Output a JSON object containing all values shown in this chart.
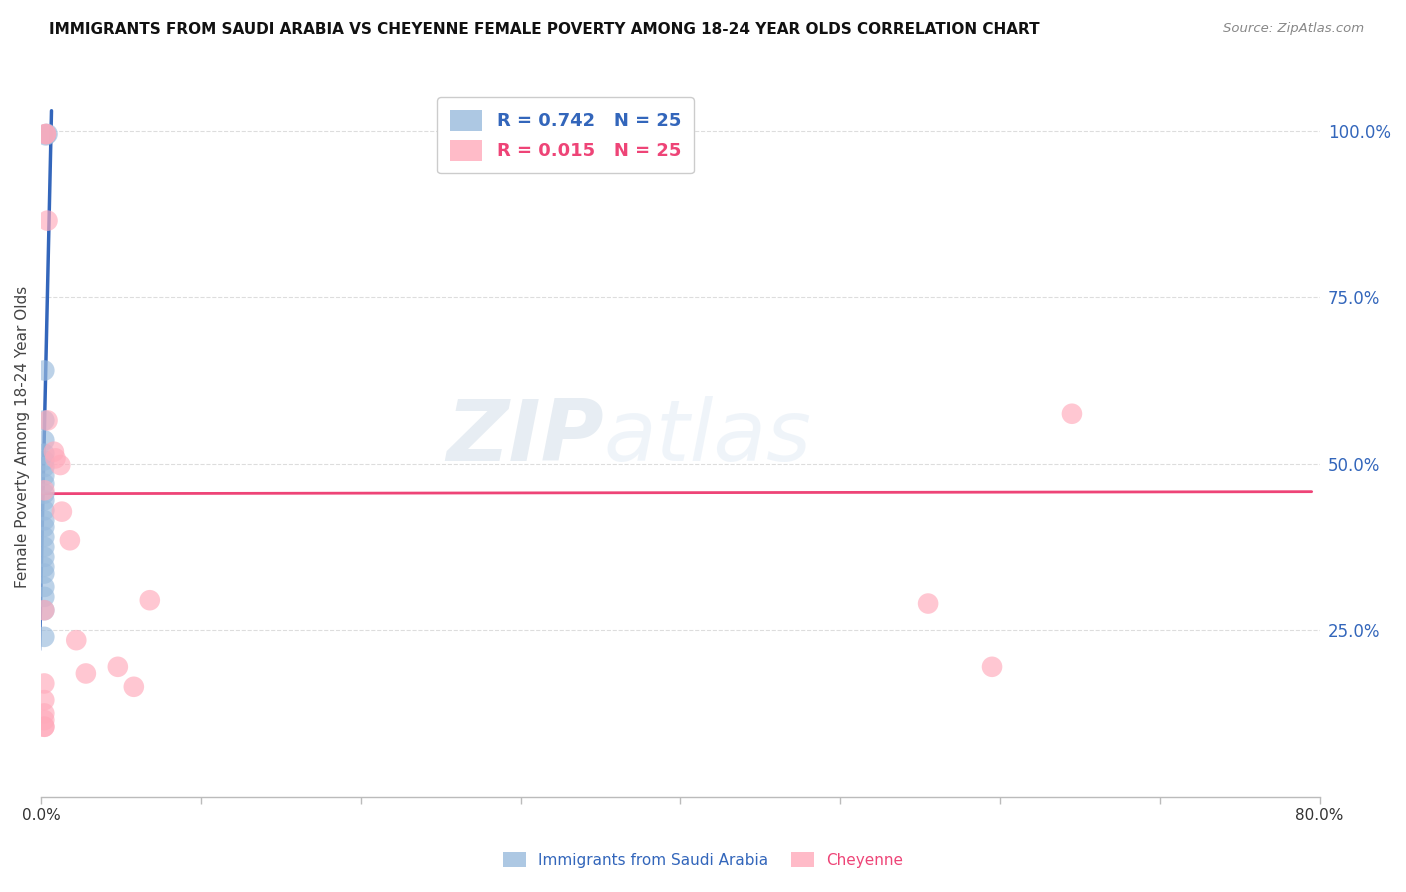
{
  "title": "IMMIGRANTS FROM SAUDI ARABIA VS CHEYENNE FEMALE POVERTY AMONG 18-24 YEAR OLDS CORRELATION CHART",
  "source": "Source: ZipAtlas.com",
  "ylabel": "Female Poverty Among 18-24 Year Olds",
  "ytick_labels": [
    "100.0%",
    "75.0%",
    "50.0%",
    "25.0%"
  ],
  "ytick_values": [
    1.0,
    0.75,
    0.5,
    0.25
  ],
  "xlim": [
    0.0,
    0.8
  ],
  "ylim": [
    0.0,
    1.08
  ],
  "legend_r_blue": "R = 0.742",
  "legend_n_blue": "N = 25",
  "legend_r_pink": "R = 0.015",
  "legend_n_pink": "N = 25",
  "blue_color": "#99BBDD",
  "pink_color": "#FFAABB",
  "blue_line_color": "#3366BB",
  "pink_line_color": "#EE4477",
  "watermark_zip": "ZIP",
  "watermark_atlas": "atlas",
  "blue_scatter_x": [
    0.003,
    0.003,
    0.004,
    0.002,
    0.002,
    0.002,
    0.002,
    0.002,
    0.002,
    0.002,
    0.002,
    0.002,
    0.002,
    0.002,
    0.002,
    0.002,
    0.002,
    0.002,
    0.002,
    0.002,
    0.002,
    0.002,
    0.002,
    0.002,
    0.002
  ],
  "blue_scatter_y": [
    0.995,
    0.993,
    0.995,
    0.64,
    0.565,
    0.535,
    0.515,
    0.505,
    0.495,
    0.482,
    0.47,
    0.455,
    0.445,
    0.43,
    0.415,
    0.405,
    0.39,
    0.375,
    0.36,
    0.345,
    0.335,
    0.315,
    0.3,
    0.28,
    0.24
  ],
  "pink_scatter_x": [
    0.003,
    0.003,
    0.004,
    0.004,
    0.008,
    0.009,
    0.012,
    0.013,
    0.018,
    0.022,
    0.028,
    0.048,
    0.058,
    0.068,
    0.002,
    0.555,
    0.595,
    0.645,
    0.002,
    0.002,
    0.002,
    0.002,
    0.002,
    0.002,
    0.002
  ],
  "pink_scatter_y": [
    0.995,
    0.995,
    0.865,
    0.565,
    0.518,
    0.508,
    0.498,
    0.428,
    0.385,
    0.235,
    0.185,
    0.195,
    0.165,
    0.295,
    0.105,
    0.29,
    0.195,
    0.575,
    0.46,
    0.28,
    0.17,
    0.145,
    0.125,
    0.115,
    0.105
  ],
  "blue_trend_x": [
    -0.001,
    0.0065
  ],
  "blue_trend_y": [
    0.22,
    1.03
  ],
  "pink_trend_x": [
    0.0,
    0.795
  ],
  "pink_trend_y": [
    0.455,
    0.458
  ],
  "xtick_positions": [
    0.0,
    0.1,
    0.2,
    0.3,
    0.4,
    0.5,
    0.6,
    0.7,
    0.8
  ],
  "xtick_labels": [
    "0.0%",
    "",
    "",
    "",
    "",
    "",
    "",
    "",
    "80.0%"
  ],
  "grid_color": "#DDDDDD",
  "spine_color": "#BBBBBB"
}
